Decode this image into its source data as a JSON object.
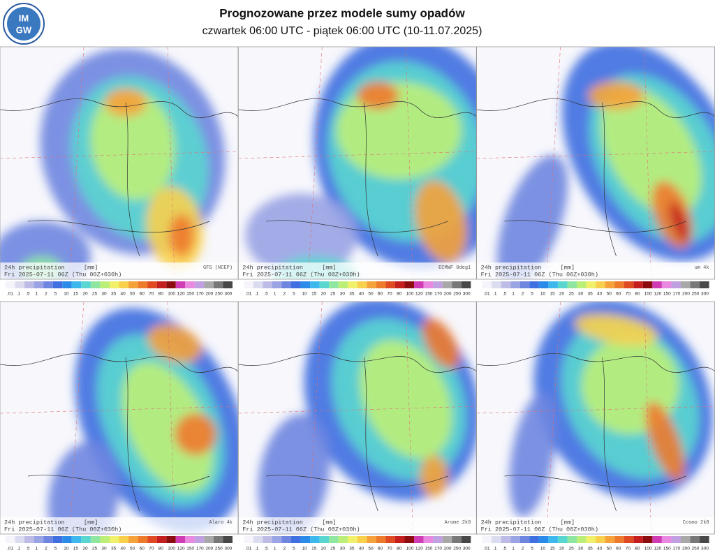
{
  "header": {
    "logo_top": "IM",
    "logo_bottom": "GW",
    "title": "Prognozowane przez modele sumy opadów",
    "subtitle": "czwartek 06:00 UTC - piątek 06:00 UTC (10-11.07.2025)"
  },
  "panels": [
    {
      "variable": "24h precipitation",
      "unit": "[mm]",
      "model": "GFS (NCEP)",
      "valid": "Fri 2025-07-11 06Z (Thu 00Z+030h)"
    },
    {
      "variable": "24h precipitation",
      "unit": "[mm]",
      "model": "ECMWF 0deg1",
      "valid": "Fri 2025-07-11 06Z (Thu 00Z+030h)"
    },
    {
      "variable": "24h precipitation",
      "unit": "[mm]",
      "model": "um 4k",
      "valid": "Fri 2025-07-11 06Z (Thu 00Z+030h)"
    },
    {
      "variable": "24h precipitation",
      "unit": "[mm]",
      "model": "Alaro 4k",
      "valid": "Fri 2025-07-11 06Z (Thu 00Z+030h)"
    },
    {
      "variable": "24h precipitation",
      "unit": "[mm]",
      "model": "Arome 2k0",
      "valid": "Fri 2025-07-11 06Z (Thu 00Z+030h)"
    },
    {
      "variable": "24h precipitation",
      "unit": "[mm]",
      "model": "Cosmo 2k8",
      "valid": "Fri 2025-07-11 06Z (Thu 00Z+030h)"
    }
  ],
  "color_scale": {
    "labels": [
      ".01",
      ".1",
      ".5",
      "1",
      "2",
      "5",
      "10",
      "15",
      "20",
      "25",
      "30",
      "35",
      "40",
      "50",
      "60",
      "70",
      "80",
      "100",
      "120",
      "150",
      "170",
      "200",
      "250",
      "300"
    ],
    "colors": [
      "#f4f4fa",
      "#dcdcf0",
      "#bcbce6",
      "#9aa4e4",
      "#6f86e0",
      "#3f6fe0",
      "#2a8ce8",
      "#3cb8ec",
      "#5ad6d0",
      "#8ee6a0",
      "#bcef78",
      "#f0f06a",
      "#f8d04c",
      "#f5a23a",
      "#ee7a2c",
      "#e04a22",
      "#c41e1e",
      "#8c0c10",
      "#d03cb4",
      "#e888e0",
      "#c0a0e0",
      "#a8a8a8",
      "#787878",
      "#484848"
    ]
  }
}
